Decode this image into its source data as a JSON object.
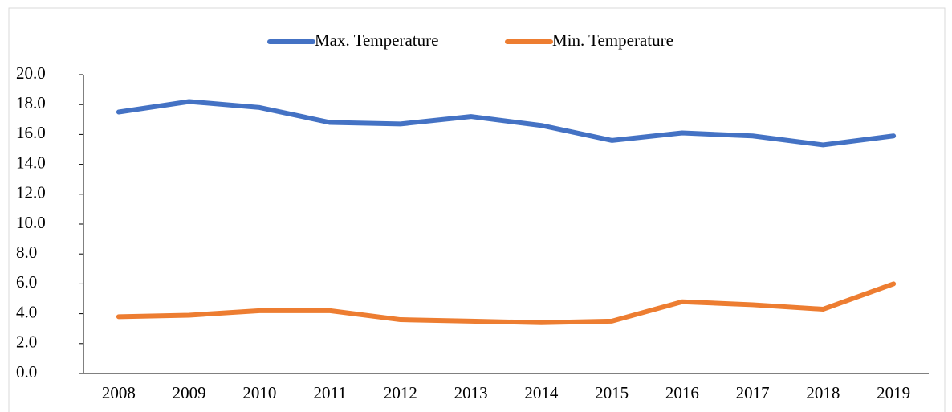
{
  "chart_data": {
    "type": "line",
    "categories": [
      "2008",
      "2009",
      "2010",
      "2011",
      "2012",
      "2013",
      "2014",
      "2015",
      "2016",
      "2017",
      "2018",
      "2019"
    ],
    "series": [
      {
        "name": "Max. Temperature",
        "color": "#4472c4",
        "values": [
          17.5,
          18.2,
          17.8,
          16.8,
          16.7,
          17.2,
          16.6,
          15.6,
          16.1,
          15.9,
          15.3,
          15.9
        ]
      },
      {
        "name": "Min. Temperature",
        "color": "#ed7d31",
        "values": [
          3.8,
          3.9,
          4.2,
          4.2,
          3.6,
          3.5,
          3.4,
          3.5,
          4.8,
          4.6,
          4.3,
          6.0
        ]
      }
    ],
    "ylim": [
      0,
      20
    ],
    "yticks": [
      {
        "value": 0,
        "label": "0.0"
      },
      {
        "value": 2,
        "label": "2.0"
      },
      {
        "value": 4,
        "label": "4.0"
      },
      {
        "value": 6,
        "label": "6.0"
      },
      {
        "value": 8,
        "label": "8.0"
      },
      {
        "value": 10,
        "label": "10.0"
      },
      {
        "value": 12,
        "label": "12.0"
      },
      {
        "value": 14,
        "label": "14.0"
      },
      {
        "value": 16,
        "label": "16.0"
      },
      {
        "value": 18,
        "label": "18.0"
      },
      {
        "value": 20,
        "label": "20.0"
      }
    ],
    "legend": "top"
  }
}
